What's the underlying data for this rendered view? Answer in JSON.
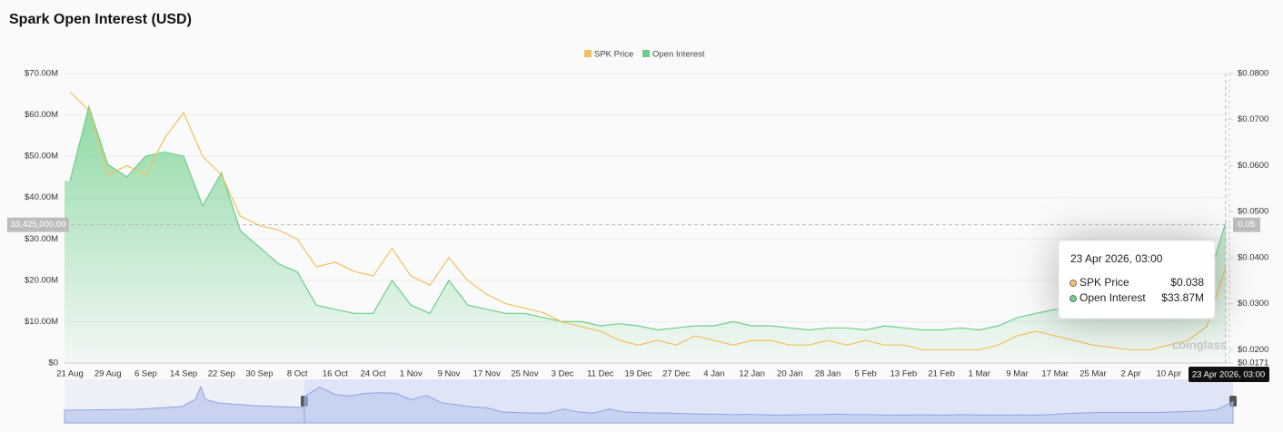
{
  "chart_data": {
    "type": "line",
    "title": "Spark Open Interest (USD)",
    "watermark": "coinglass",
    "legend": "top",
    "grid": true,
    "categories": [
      "21 Aug",
      null,
      "29 Aug",
      null,
      "6 Sep",
      null,
      "14 Sep",
      null,
      "22 Sep",
      null,
      "30 Sep",
      null,
      "8 Oct",
      null,
      "16 Oct",
      null,
      "24 Oct",
      null,
      "1 Nov",
      null,
      "9 Nov",
      null,
      "17 Nov",
      null,
      "25 Nov",
      null,
      "3 Dec",
      null,
      "11 Dec",
      null,
      "19 Dec",
      null,
      "27 Dec",
      null,
      "4 Jan",
      null,
      "12 Jan",
      null,
      "20 Jan",
      null,
      "28 Jan",
      null,
      "5 Feb",
      null,
      "13 Feb",
      null,
      "21 Feb",
      null,
      "1 Mar",
      null,
      "9 Mar",
      null,
      "17 Mar",
      null,
      "25 Mar",
      null,
      "2 Apr",
      null,
      "10 Apr",
      null,
      null,
      "23 Apr 2026, 03:00"
    ],
    "series": [
      {
        "name": "SPK Price",
        "color": "#f2c15d",
        "axis": "y2",
        "area": false,
        "values": [
          0.076,
          0.072,
          0.058,
          0.06,
          0.058,
          0.066,
          0.0715,
          0.062,
          0.058,
          0.049,
          0.047,
          0.046,
          0.044,
          0.038,
          0.039,
          0.037,
          0.036,
          0.042,
          0.036,
          0.034,
          0.04,
          0.035,
          0.032,
          0.03,
          0.029,
          0.028,
          0.026,
          0.025,
          0.024,
          0.022,
          0.021,
          0.022,
          0.021,
          0.023,
          0.022,
          0.021,
          0.022,
          0.022,
          0.021,
          0.021,
          0.022,
          0.021,
          0.022,
          0.021,
          0.021,
          0.02,
          0.02,
          0.02,
          0.02,
          0.021,
          0.023,
          0.024,
          0.023,
          0.022,
          0.021,
          0.0205,
          0.02,
          0.02,
          0.021,
          0.022,
          0.025,
          0.038
        ],
        "value_labels": [
          null,
          null,
          null,
          null,
          null,
          null,
          null,
          null,
          null,
          null,
          null,
          null,
          null,
          null,
          null,
          null,
          null,
          null,
          null,
          null,
          null,
          null,
          null,
          null,
          null,
          null,
          null,
          null,
          null,
          null,
          null,
          null,
          null,
          null,
          null,
          null,
          null,
          null,
          null,
          null,
          null,
          null,
          null,
          null,
          null,
          null,
          null,
          null,
          null,
          null,
          null,
          null,
          null,
          null,
          null,
          null,
          null,
          null,
          null,
          null,
          null,
          "$0.038"
        ]
      },
      {
        "name": "Open Interest",
        "color": "#6dcf8a",
        "axis": "y",
        "area": true,
        "values": [
          44000000,
          62000000,
          48000000,
          45000000,
          50000000,
          51000000,
          50000000,
          38000000,
          46000000,
          32000000,
          28000000,
          24000000,
          22000000,
          14000000,
          13000000,
          12000000,
          12000000,
          20000000,
          14000000,
          12000000,
          20000000,
          14000000,
          13000000,
          12000000,
          12000000,
          11000000,
          10000000,
          10000000,
          9000000,
          9500000,
          9000000,
          8000000,
          8500000,
          9000000,
          9000000,
          10000000,
          9000000,
          9000000,
          8500000,
          8000000,
          8500000,
          8500000,
          8000000,
          9000000,
          8500000,
          8000000,
          8000000,
          8500000,
          8000000,
          9000000,
          11000000,
          12000000,
          13000000,
          13000000,
          13000000,
          13000000,
          13000000,
          14000000,
          15000000,
          16000000,
          19000000,
          33870000
        ],
        "value_labels": [
          null,
          null,
          null,
          null,
          null,
          null,
          null,
          null,
          null,
          null,
          null,
          null,
          null,
          null,
          null,
          null,
          null,
          null,
          null,
          null,
          null,
          null,
          null,
          null,
          null,
          null,
          null,
          null,
          null,
          null,
          null,
          null,
          null,
          null,
          null,
          null,
          null,
          null,
          null,
          null,
          null,
          null,
          null,
          null,
          null,
          null,
          null,
          null,
          null,
          null,
          null,
          null,
          null,
          null,
          null,
          null,
          null,
          null,
          null,
          null,
          null,
          "$33.87M"
        ]
      }
    ],
    "ylim": [
      0,
      70000000
    ],
    "yticks": [
      {
        "value": 0,
        "label": "$0"
      },
      {
        "value": 10000000,
        "label": "$10.00M"
      },
      {
        "value": 20000000,
        "label": "$20.00M"
      },
      {
        "value": 30000000,
        "label": "$30.00M"
      },
      {
        "value": 40000000,
        "label": "$40.00M"
      },
      {
        "value": 50000000,
        "label": "$50.00M"
      },
      {
        "value": 60000000,
        "label": "$60.00M"
      },
      {
        "value": 70000000,
        "label": "$70.00M"
      }
    ],
    "y2lim": [
      0.0171,
      0.08
    ],
    "y2ticks": [
      {
        "value": 0.0171,
        "label": "$0.0171"
      },
      {
        "value": 0.02,
        "label": "$0.0200"
      },
      {
        "value": 0.03,
        "label": "$0.0300"
      },
      {
        "value": 0.04,
        "label": "$0.0400"
      },
      {
        "value": 0.05,
        "label": "$0.0500"
      },
      {
        "value": 0.06,
        "label": "$0.0600"
      },
      {
        "value": 0.07,
        "label": "$0.0700"
      },
      {
        "value": 0.08,
        "label": "$0.0800"
      }
    ],
    "crosshair": {
      "y": {
        "value": 33425000,
        "label": "33,425,000.00"
      },
      "y2": 0.05
    }
  }
}
